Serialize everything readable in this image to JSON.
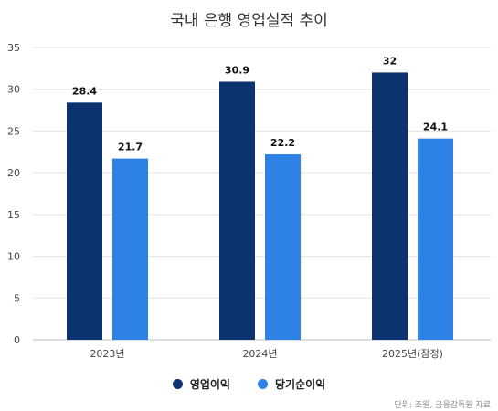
{
  "chart_data": {
    "type": "bar",
    "title": "국내 은행 영업실적 추이",
    "categories": [
      "2023년",
      "2024년",
      "2025년(잠정)"
    ],
    "series": [
      {
        "name": "영업이익",
        "values": [
          28.4,
          30.9,
          32
        ],
        "value_labels": [
          "28.4",
          "30.9",
          "32"
        ],
        "color": "#0b3370"
      },
      {
        "name": "당기순이익",
        "values": [
          21.7,
          22.2,
          24.1
        ],
        "value_labels": [
          "21.7",
          "22.2",
          "24.1"
        ],
        "color": "#2e82e6"
      }
    ],
    "ylim": [
      0,
      35
    ],
    "yticks": [
      0,
      5,
      10,
      15,
      20,
      25,
      30,
      35
    ],
    "ytick_labels": [
      "0",
      "5",
      "10",
      "15",
      "20",
      "25",
      "30",
      "35"
    ],
    "grid": true,
    "legend_position": "bottom-center",
    "note": "단위: 조원, 금융감독원 자료"
  }
}
